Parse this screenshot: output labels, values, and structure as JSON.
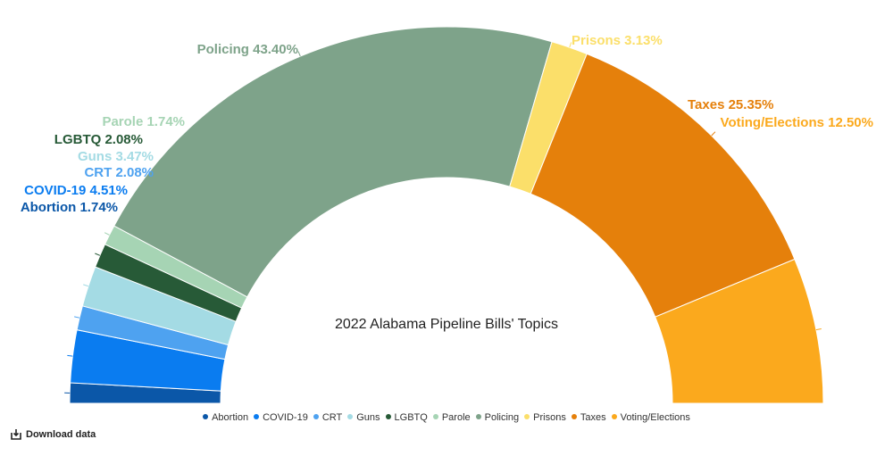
{
  "chart_data": {
    "type": "pie",
    "subtype": "semi-donut",
    "title": "2022 Alabama Pipeline Bills' Topics",
    "slices": [
      {
        "name": "Abortion",
        "value": 1.74,
        "label": "Abortion 1.74%",
        "color": "#0b57a8"
      },
      {
        "name": "COVID-19",
        "value": 4.51,
        "label": "COVID-19 4.51%",
        "color": "#0a7cf0"
      },
      {
        "name": "CRT",
        "value": 2.08,
        "label": "CRT 2.08%",
        "color": "#4ea2f0"
      },
      {
        "name": "Guns",
        "value": 3.47,
        "label": "Guns 3.47%",
        "color": "#a4dbe4"
      },
      {
        "name": "LGBTQ",
        "value": 2.08,
        "label": "LGBTQ 2.08%",
        "color": "#275a37"
      },
      {
        "name": "Parole",
        "value": 1.74,
        "label": "Parole 1.74%",
        "color": "#a6d4b4"
      },
      {
        "name": "Policing",
        "value": 43.4,
        "label": "Policing 43.40%",
        "color": "#7ea38a"
      },
      {
        "name": "Prisons",
        "value": 3.13,
        "label": "Prisons 3.13%",
        "color": "#fbdf6a"
      },
      {
        "name": "Taxes",
        "value": 25.35,
        "label": "Taxes 25.35%",
        "color": "#e5800b"
      },
      {
        "name": "Voting/Elections",
        "value": 12.5,
        "label": "Voting/Elections 12.50%",
        "color": "#fba91d"
      }
    ],
    "legend_position": "bottom"
  },
  "footer": {
    "download_label": "Download data",
    "download_icon": "download-icon"
  }
}
